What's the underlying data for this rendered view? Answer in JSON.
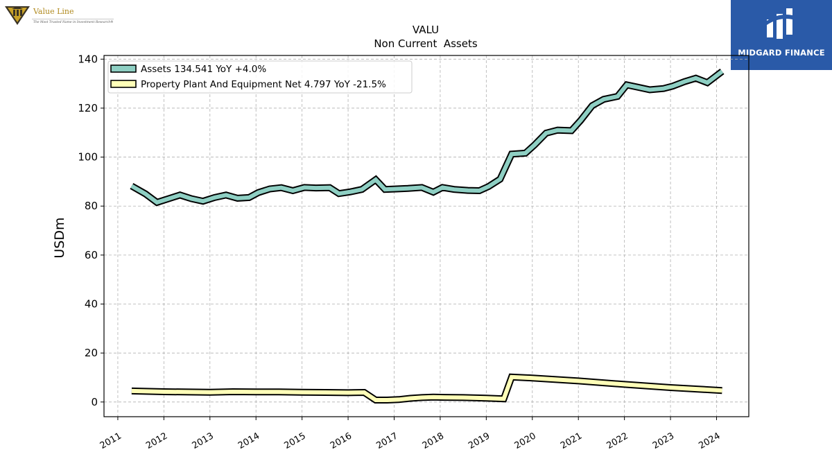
{
  "brand": {
    "left_name": "Value Line",
    "left_tagline": "The Most Trusted Name in Investment Research®",
    "right_name": "MIDGARD FINANCE"
  },
  "colors": {
    "assets_fill": "#8ecfc3",
    "ppe_fill": "#ffffb8",
    "outline": "#000000",
    "grid": "#b0b0b0",
    "brand_blue": "#2a5aa8"
  },
  "chart_data": {
    "type": "line",
    "title": "VALU",
    "subtitle": "Non Current  Assets",
    "ylabel": "USDm",
    "xlabel": "",
    "ylim": [
      -6,
      141.5
    ],
    "xlim": [
      2010.7,
      2024.7
    ],
    "yticks": [
      0,
      20,
      40,
      60,
      80,
      100,
      120,
      140
    ],
    "xticks": [
      "2011",
      "2012",
      "2013",
      "2014",
      "2015",
      "2016",
      "2017",
      "2018",
      "2019",
      "2020",
      "2021",
      "2022",
      "2023",
      "2024"
    ],
    "grid": true,
    "legend_position": "top-left",
    "legend": [
      "Assets  134.541 YoY +4.0%",
      "Property Plant And Equipment Net  4.797 YoY -21.5%"
    ],
    "series": [
      {
        "name": "Assets",
        "x": [
          2011.3,
          2011.6,
          2011.85,
          2012.1,
          2012.35,
          2012.6,
          2012.85,
          2013.1,
          2013.35,
          2013.6,
          2013.85,
          2014.05,
          2014.3,
          2014.55,
          2014.8,
          2015.05,
          2015.3,
          2015.6,
          2015.8,
          2016.05,
          2016.3,
          2016.6,
          2016.8,
          2017.05,
          2017.3,
          2017.6,
          2017.85,
          2018.05,
          2018.3,
          2018.6,
          2018.85,
          2019.05,
          2019.3,
          2019.55,
          2019.85,
          2020.05,
          2020.3,
          2020.55,
          2020.85,
          2021.05,
          2021.3,
          2021.55,
          2021.85,
          2022.05,
          2022.3,
          2022.55,
          2022.85,
          2023.05,
          2023.3,
          2023.55,
          2023.8,
          2024.12
        ],
        "values": [
          88.2,
          85.0,
          81.5,
          83.0,
          84.5,
          83.0,
          82.0,
          83.5,
          84.5,
          83.2,
          83.5,
          85.5,
          87.0,
          87.5,
          86.3,
          87.6,
          87.4,
          87.5,
          85.1,
          85.8,
          86.8,
          90.8,
          86.8,
          87.0,
          87.2,
          87.6,
          85.7,
          87.6,
          86.8,
          86.4,
          86.3,
          88.0,
          91.0,
          101.2,
          101.6,
          105.0,
          109.8,
          111.0,
          110.8,
          115.0,
          121.0,
          123.6,
          124.8,
          129.5,
          128.5,
          127.5,
          128.0,
          129.0,
          130.8,
          132.2,
          130.4,
          135.0
        ]
      },
      {
        "name": "Property Plant And Equipment Net",
        "x": [
          2011.3,
          2012.0,
          2013.0,
          2013.5,
          2014.0,
          2014.5,
          2015.0,
          2015.5,
          2016.0,
          2016.35,
          2016.6,
          2016.85,
          2017.1,
          2017.35,
          2017.6,
          2017.85,
          2018.1,
          2018.5,
          2019.0,
          2019.38,
          2019.55,
          2020.0,
          2021.0,
          2022.0,
          2023.0,
          2024.12
        ],
        "values": [
          4.5,
          4.2,
          4.0,
          4.2,
          4.1,
          4.1,
          4.0,
          3.9,
          3.8,
          3.9,
          0.8,
          0.8,
          1.0,
          1.5,
          1.8,
          2.0,
          1.9,
          1.8,
          1.6,
          1.3,
          10.2,
          9.8,
          8.6,
          7.2,
          5.9,
          4.7
        ]
      }
    ]
  }
}
